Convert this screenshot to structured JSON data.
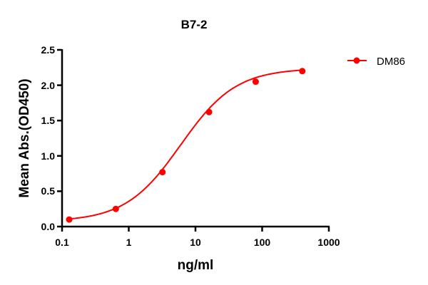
{
  "chart_data": {
    "type": "line",
    "title": "B7-2",
    "xlabel": "ng/ml",
    "ylabel": "Mean Abs.(OD450)",
    "xscale": "log",
    "xlim": [
      0.1,
      1000
    ],
    "ylim": [
      0.0,
      2.5
    ],
    "xticks": [
      "0.1",
      "1",
      "10",
      "100",
      "1000"
    ],
    "yticks": [
      "0.0",
      "0.5",
      "1.0",
      "1.5",
      "2.0",
      "2.5"
    ],
    "grid": false,
    "legend_position": "top-right",
    "series": [
      {
        "name": "DM86",
        "color": "#ff0000",
        "x": [
          0.128,
          0.64,
          3.2,
          16,
          80,
          400
        ],
        "values": [
          0.1,
          0.25,
          0.77,
          1.62,
          2.05,
          2.2
        ]
      }
    ]
  }
}
